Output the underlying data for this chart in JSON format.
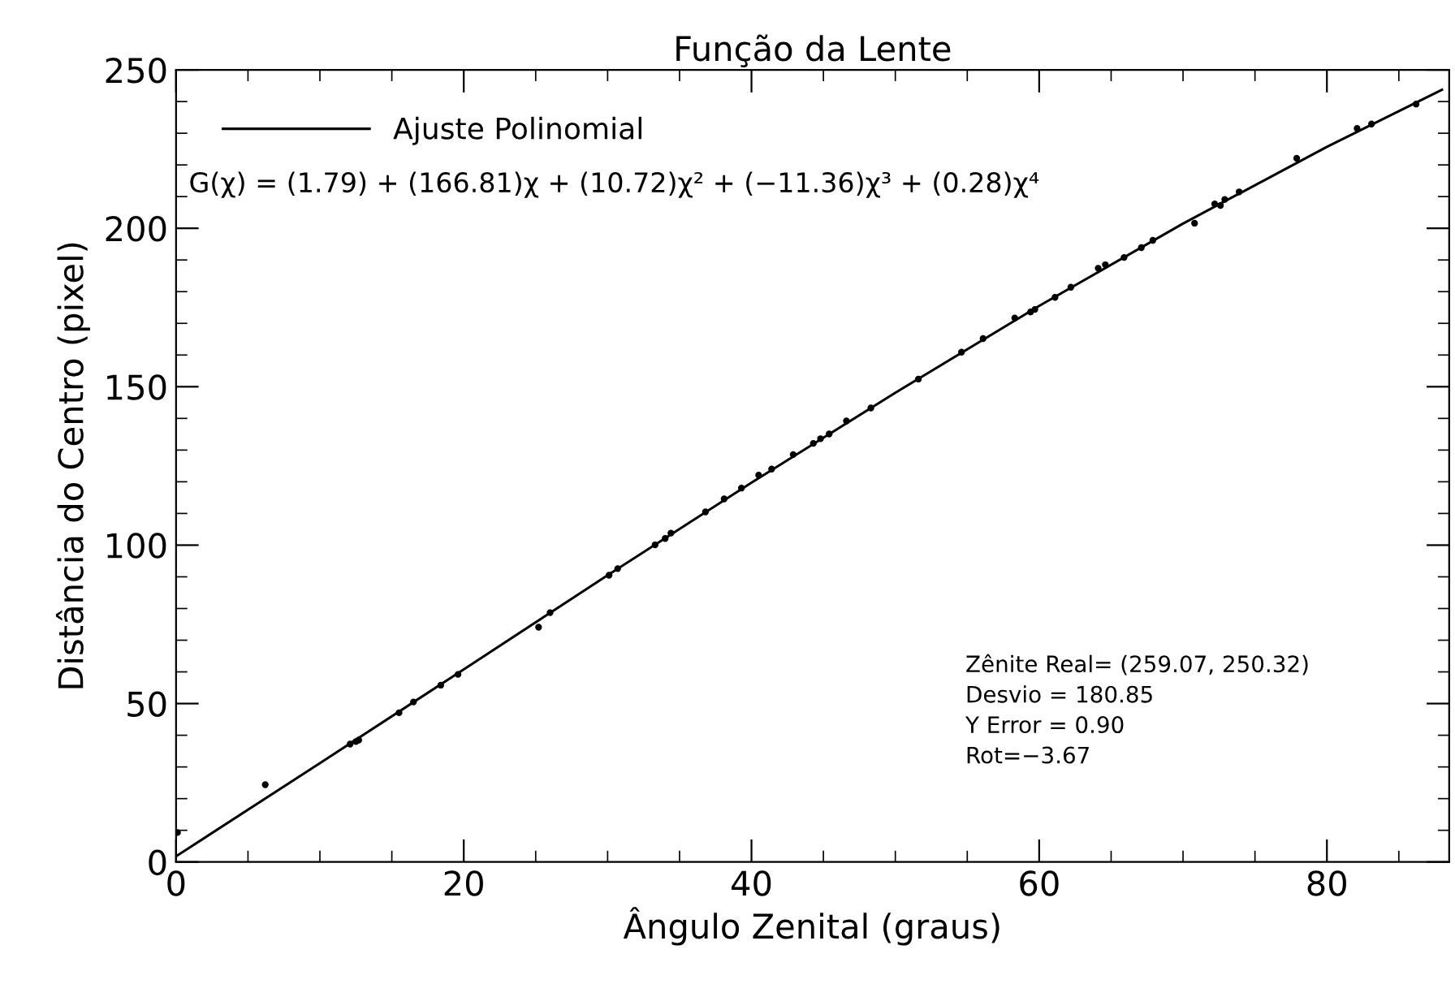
{
  "chart_data": {
    "type": "scatter",
    "title": "Função da Lente",
    "xlabel": "Ângulo Zenital (graus)",
    "ylabel": "Distância do Centro (pixel)",
    "xlim": [
      0,
      88.5
    ],
    "ylim": [
      0,
      250
    ],
    "xticks": [
      0,
      20,
      40,
      60,
      80
    ],
    "yticks": [
      0,
      50,
      100,
      150,
      200,
      250
    ],
    "grid": false,
    "legend": "top left",
    "series": [
      {
        "color": "#000000",
        "marker": "circle",
        "x": [
          0.1,
          6.2,
          12.1,
          12.5,
          12.7,
          15.5,
          16.5,
          18.4,
          19.6,
          25.2,
          26.0,
          30.1,
          30.7,
          33.3,
          34.0,
          34.4,
          36.8,
          38.1,
          39.3,
          40.5,
          41.4,
          42.9,
          44.3,
          44.8,
          45.4,
          46.6,
          48.3,
          51.6,
          54.6,
          56.1,
          58.3,
          59.4,
          59.7,
          61.1,
          62.2,
          64.1,
          64.6,
          65.9,
          67.1,
          67.9,
          70.8,
          72.2,
          72.6,
          72.9,
          73.9,
          77.9,
          82.1,
          83.1,
          86.2
        ],
        "values": [
          9.3,
          24.4,
          37.2,
          38.0,
          38.5,
          47.1,
          50.5,
          55.8,
          59.2,
          74.1,
          78.7,
          90.5,
          92.6,
          100.1,
          102.1,
          103.8,
          110.5,
          114.6,
          118.0,
          122.1,
          124.0,
          128.6,
          132.1,
          133.6,
          135.1,
          139.2,
          143.3,
          152.4,
          160.9,
          165.2,
          171.7,
          173.6,
          174.4,
          178.2,
          181.4,
          187.4,
          188.5,
          190.8,
          193.9,
          196.2,
          201.6,
          207.7,
          207.2,
          209.1,
          211.5,
          222.1,
          231.5,
          232.9,
          239.2
        ]
      },
      {
        "type": "line",
        "name": "Ajuste Polinomial",
        "color": "#000000",
        "line_style": "solid",
        "marker": "none",
        "x": [
          0,
          10,
          20,
          30,
          40,
          50,
          60,
          70,
          80,
          88
        ],
        "values": [
          1.8,
          31.2,
          60.8,
          90.5,
          119.7,
          148.1,
          175.5,
          201.5,
          225.7,
          243.7
        ]
      }
    ],
    "annotations": [
      "G(χ) = (1.79) + (166.81)χ + (10.72)χ² + (−11.36)χ³ + (0.28)χ⁴",
      "Zênite Real= (259.07, 250.32)\nDesvio = 180.85\nY Error = 0.90\nRot=−3.67"
    ]
  }
}
